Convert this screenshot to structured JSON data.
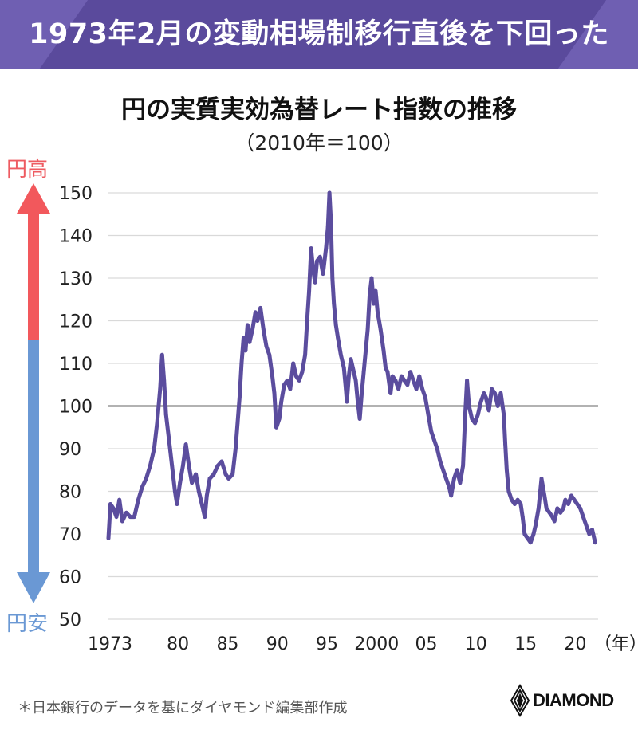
{
  "headline": "1973年2月の変動相場制移行直後を下回った",
  "labels": {
    "high": "円高",
    "low": "円安"
  },
  "note": "＊日本銀行のデータを基にダイヤモンド編集部作成",
  "brand": "DIAMOND",
  "colors": {
    "banner": "#5a4a9c",
    "line": "#5b4d9e",
    "arrow_up": "#f2585c",
    "arrow_down": "#6a98d4",
    "grid": "#d9d9d9",
    "baseline": "#666666"
  },
  "chart_data": {
    "type": "line",
    "title": "円の実質実効為替レート指数の推移",
    "subtitle": "（2010年＝100）",
    "xlabel": "（年）",
    "ylabel": "",
    "ylim": [
      50,
      150
    ],
    "yticks": [
      50,
      60,
      70,
      80,
      90,
      100,
      110,
      120,
      130,
      140,
      150
    ],
    "xlim": [
      1973,
      2022.3
    ],
    "xticks": [
      {
        "value": 1973,
        "label": "1973"
      },
      {
        "value": 1980,
        "label": "80"
      },
      {
        "value": 1985,
        "label": "85"
      },
      {
        "value": 1990,
        "label": "90"
      },
      {
        "value": 1995,
        "label": "95"
      },
      {
        "value": 2000,
        "label": "2000"
      },
      {
        "value": 2005,
        "label": "05"
      },
      {
        "value": 2010,
        "label": "10"
      },
      {
        "value": 2015,
        "label": "15"
      },
      {
        "value": 2020,
        "label": "20"
      }
    ],
    "reference_line": 100,
    "grid": true,
    "series": [
      {
        "values": [
          [
            1973.0,
            69
          ],
          [
            1973.2,
            77
          ],
          [
            1973.5,
            76
          ],
          [
            1973.8,
            74
          ],
          [
            1974.1,
            78
          ],
          [
            1974.4,
            73
          ],
          [
            1974.8,
            75
          ],
          [
            1975.2,
            74
          ],
          [
            1975.6,
            74
          ],
          [
            1976.0,
            78
          ],
          [
            1976.4,
            81
          ],
          [
            1976.8,
            83
          ],
          [
            1977.2,
            86
          ],
          [
            1977.6,
            90
          ],
          [
            1977.9,
            96
          ],
          [
            1978.2,
            104
          ],
          [
            1978.4,
            112
          ],
          [
            1978.6,
            106
          ],
          [
            1978.8,
            98
          ],
          [
            1979.1,
            92
          ],
          [
            1979.4,
            86
          ],
          [
            1979.7,
            80
          ],
          [
            1979.9,
            77
          ],
          [
            1980.2,
            82
          ],
          [
            1980.5,
            86
          ],
          [
            1980.8,
            91
          ],
          [
            1981.1,
            86
          ],
          [
            1981.4,
            82
          ],
          [
            1981.8,
            84
          ],
          [
            1982.1,
            80
          ],
          [
            1982.4,
            77
          ],
          [
            1982.7,
            74
          ],
          [
            1982.9,
            79
          ],
          [
            1983.2,
            83
          ],
          [
            1983.6,
            84
          ],
          [
            1984.0,
            86
          ],
          [
            1984.4,
            87
          ],
          [
            1984.8,
            84
          ],
          [
            1985.1,
            83
          ],
          [
            1985.5,
            84
          ],
          [
            1985.8,
            90
          ],
          [
            1986.0,
            96
          ],
          [
            1986.2,
            102
          ],
          [
            1986.4,
            110
          ],
          [
            1986.6,
            116
          ],
          [
            1986.8,
            113
          ],
          [
            1987.0,
            119
          ],
          [
            1987.2,
            115
          ],
          [
            1987.5,
            118
          ],
          [
            1987.8,
            122
          ],
          [
            1988.0,
            120
          ],
          [
            1988.3,
            123
          ],
          [
            1988.6,
            118
          ],
          [
            1988.9,
            114
          ],
          [
            1989.2,
            112
          ],
          [
            1989.5,
            107
          ],
          [
            1989.7,
            103
          ],
          [
            1989.9,
            95
          ],
          [
            1990.2,
            97
          ],
          [
            1990.4,
            101
          ],
          [
            1990.7,
            105
          ],
          [
            1991.0,
            106
          ],
          [
            1991.3,
            104
          ],
          [
            1991.6,
            110
          ],
          [
            1991.9,
            107
          ],
          [
            1992.2,
            106
          ],
          [
            1992.5,
            108
          ],
          [
            1992.8,
            112
          ],
          [
            1993.0,
            120
          ],
          [
            1993.2,
            127
          ],
          [
            1993.4,
            137
          ],
          [
            1993.6,
            132
          ],
          [
            1993.8,
            129
          ],
          [
            1994.0,
            134
          ],
          [
            1994.3,
            135
          ],
          [
            1994.6,
            131
          ],
          [
            1994.9,
            137
          ],
          [
            1995.1,
            142
          ],
          [
            1995.25,
            150
          ],
          [
            1995.4,
            143
          ],
          [
            1995.55,
            130
          ],
          [
            1995.7,
            124
          ],
          [
            1995.9,
            119
          ],
          [
            1996.1,
            116
          ],
          [
            1996.4,
            112
          ],
          [
            1996.7,
            109
          ],
          [
            1996.9,
            104
          ],
          [
            1997.0,
            101
          ],
          [
            1997.2,
            107
          ],
          [
            1997.4,
            111
          ],
          [
            1997.6,
            109
          ],
          [
            1997.9,
            106
          ],
          [
            1998.1,
            101
          ],
          [
            1998.3,
            97
          ],
          [
            1998.5,
            103
          ],
          [
            1998.7,
            108
          ],
          [
            1998.9,
            113
          ],
          [
            1999.1,
            118
          ],
          [
            1999.3,
            126
          ],
          [
            1999.5,
            130
          ],
          [
            1999.7,
            124
          ],
          [
            1999.9,
            127
          ],
          [
            2000.1,
            122
          ],
          [
            2000.4,
            118
          ],
          [
            2000.7,
            113
          ],
          [
            2000.9,
            109
          ],
          [
            2001.1,
            108
          ],
          [
            2001.4,
            103
          ],
          [
            2001.6,
            107
          ],
          [
            2001.9,
            106
          ],
          [
            2002.2,
            104
          ],
          [
            2002.5,
            107
          ],
          [
            2002.8,
            106
          ],
          [
            2003.1,
            105
          ],
          [
            2003.4,
            108
          ],
          [
            2003.7,
            106
          ],
          [
            2004.0,
            104
          ],
          [
            2004.3,
            107
          ],
          [
            2004.6,
            104
          ],
          [
            2004.9,
            102
          ],
          [
            2005.2,
            98
          ],
          [
            2005.5,
            94
          ],
          [
            2005.8,
            92
          ],
          [
            2006.1,
            90
          ],
          [
            2006.4,
            87
          ],
          [
            2006.7,
            85
          ],
          [
            2007.0,
            83
          ],
          [
            2007.3,
            81
          ],
          [
            2007.5,
            79
          ],
          [
            2007.8,
            83
          ],
          [
            2008.1,
            85
          ],
          [
            2008.4,
            82
          ],
          [
            2008.7,
            86
          ],
          [
            2008.9,
            97
          ],
          [
            2009.1,
            106
          ],
          [
            2009.3,
            100
          ],
          [
            2009.6,
            97
          ],
          [
            2009.9,
            96
          ],
          [
            2010.2,
            98
          ],
          [
            2010.5,
            101
          ],
          [
            2010.8,
            103
          ],
          [
            2011.0,
            102
          ],
          [
            2011.3,
            99
          ],
          [
            2011.6,
            104
          ],
          [
            2011.9,
            103
          ],
          [
            2012.2,
            100
          ],
          [
            2012.5,
            103
          ],
          [
            2012.8,
            98
          ],
          [
            2012.95,
            91
          ],
          [
            2013.1,
            85
          ],
          [
            2013.3,
            80
          ],
          [
            2013.6,
            78
          ],
          [
            2013.9,
            77
          ],
          [
            2014.2,
            78
          ],
          [
            2014.5,
            77
          ],
          [
            2014.7,
            74
          ],
          [
            2014.9,
            70
          ],
          [
            2015.2,
            69
          ],
          [
            2015.5,
            68
          ],
          [
            2015.8,
            70
          ],
          [
            2016.0,
            72
          ],
          [
            2016.3,
            76
          ],
          [
            2016.6,
            83
          ],
          [
            2016.9,
            79
          ],
          [
            2017.1,
            76
          ],
          [
            2017.4,
            75
          ],
          [
            2017.7,
            74
          ],
          [
            2017.9,
            73
          ],
          [
            2018.2,
            76
          ],
          [
            2018.5,
            75
          ],
          [
            2018.8,
            76
          ],
          [
            2019.0,
            78
          ],
          [
            2019.3,
            77
          ],
          [
            2019.6,
            79
          ],
          [
            2019.9,
            78
          ],
          [
            2020.2,
            77
          ],
          [
            2020.5,
            76
          ],
          [
            2020.8,
            74
          ],
          [
            2021.1,
            72
          ],
          [
            2021.4,
            70
          ],
          [
            2021.7,
            71
          ],
          [
            2022.0,
            68
          ]
        ]
      }
    ]
  }
}
